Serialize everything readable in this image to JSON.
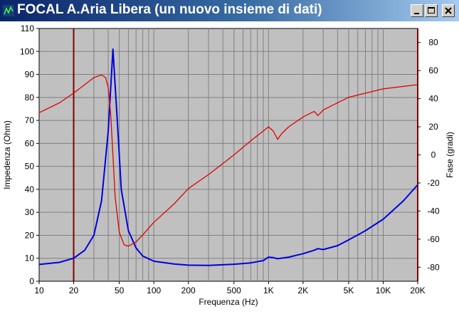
{
  "window": {
    "title": "FOCAL A.Aria Libera (un nuovo insieme di dati)",
    "controls": [
      "minimize",
      "maximize",
      "close"
    ]
  },
  "colors": {
    "plot_background": "#c0c0c0",
    "grid": "#808080",
    "impedance": "#0000e0",
    "phase": "#e00000",
    "marker_lines": "#800000"
  },
  "chart_data": {
    "type": "line",
    "x_scale": "log",
    "xlim": [
      10,
      20000
    ],
    "x_ticks": [
      {
        "v": 10,
        "label": "10"
      },
      {
        "v": 20,
        "label": "20"
      },
      {
        "v": 50,
        "label": "50"
      },
      {
        "v": 100,
        "label": "100"
      },
      {
        "v": 200,
        "label": "200"
      },
      {
        "v": 500,
        "label": "500"
      },
      {
        "v": 1000,
        "label": "1K"
      },
      {
        "v": 2000,
        "label": "2K"
      },
      {
        "v": 5000,
        "label": "5K"
      },
      {
        "v": 10000,
        "label": "10K"
      },
      {
        "v": 20000,
        "label": "20K"
      }
    ],
    "xlabel": "Frequenza (Hz)",
    "ylabel_left": "Impedenza (Ohm)",
    "ylim_left": [
      0,
      110
    ],
    "y_ticks_left": [
      0,
      10,
      20,
      30,
      40,
      50,
      60,
      70,
      80,
      90,
      100,
      110
    ],
    "ylabel_right": "Fase (gradi)",
    "ylim_right": [
      -90,
      90
    ],
    "y_ticks_right": [
      80,
      60,
      40,
      20,
      0,
      -20,
      -40,
      -60,
      -80
    ],
    "marker_frequencies": [
      20,
      20000
    ],
    "grid": true,
    "series": [
      {
        "axis": "left",
        "color": "#0000e0",
        "points": [
          [
            10,
            7.3
          ],
          [
            15,
            8.2
          ],
          [
            20,
            10
          ],
          [
            25,
            13.5
          ],
          [
            30,
            20
          ],
          [
            35,
            35
          ],
          [
            40,
            65
          ],
          [
            44,
            101
          ],
          [
            48,
            70
          ],
          [
            52,
            40
          ],
          [
            60,
            22
          ],
          [
            70,
            14.5
          ],
          [
            80,
            11
          ],
          [
            100,
            8.7
          ],
          [
            150,
            7.5
          ],
          [
            200,
            7.0
          ],
          [
            300,
            6.9
          ],
          [
            500,
            7.4
          ],
          [
            700,
            8.0
          ],
          [
            900,
            9.0
          ],
          [
            1000,
            10.5
          ],
          [
            1100,
            10.3
          ],
          [
            1200,
            9.8
          ],
          [
            1500,
            10.5
          ],
          [
            2000,
            12
          ],
          [
            2500,
            13.5
          ],
          [
            2700,
            14.2
          ],
          [
            3000,
            13.8
          ],
          [
            4000,
            15.5
          ],
          [
            5000,
            18
          ],
          [
            7000,
            22
          ],
          [
            10000,
            27
          ],
          [
            15000,
            35
          ],
          [
            20000,
            42
          ]
        ]
      },
      {
        "axis": "right",
        "color": "#e00000",
        "points": [
          [
            10,
            30
          ],
          [
            15,
            37
          ],
          [
            20,
            44
          ],
          [
            25,
            50
          ],
          [
            30,
            55
          ],
          [
            35,
            57
          ],
          [
            38,
            55
          ],
          [
            40,
            48
          ],
          [
            42,
            30
          ],
          [
            44,
            0
          ],
          [
            46,
            -30
          ],
          [
            50,
            -55
          ],
          [
            55,
            -64
          ],
          [
            60,
            -65
          ],
          [
            70,
            -62
          ],
          [
            80,
            -57
          ],
          [
            100,
            -48
          ],
          [
            150,
            -35
          ],
          [
            200,
            -24
          ],
          [
            300,
            -14
          ],
          [
            500,
            0
          ],
          [
            700,
            10
          ],
          [
            900,
            17
          ],
          [
            1000,
            20
          ],
          [
            1100,
            17
          ],
          [
            1200,
            11
          ],
          [
            1300,
            15
          ],
          [
            1500,
            20
          ],
          [
            2000,
            27
          ],
          [
            2500,
            31
          ],
          [
            2700,
            28
          ],
          [
            3000,
            32
          ],
          [
            5000,
            41
          ],
          [
            10000,
            47
          ],
          [
            20000,
            50
          ]
        ]
      }
    ]
  }
}
